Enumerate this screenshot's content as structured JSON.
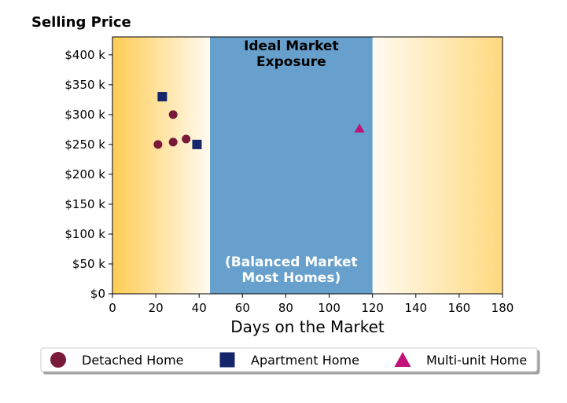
{
  "chart_data": {
    "type": "scatter",
    "title": "Selling Price",
    "xlabel": "Days on the Market",
    "xlim": [
      0,
      180
    ],
    "ylim": [
      0,
      430000
    ],
    "x_ticks": [
      0,
      20,
      40,
      60,
      80,
      100,
      120,
      140,
      160,
      180
    ],
    "x_tick_labels": [
      "0",
      "20",
      "40",
      "60",
      "80",
      "100",
      "120",
      "140",
      "160",
      "180"
    ],
    "y_ticks": [
      0,
      50000,
      100000,
      150000,
      200000,
      250000,
      300000,
      350000,
      400000
    ],
    "y_tick_labels": [
      "$0",
      "$50 k",
      "$100 k",
      "$150 k",
      "$200 k",
      "$250 k",
      "$300 k",
      "$350 k",
      "$400 k"
    ],
    "grid": false,
    "ideal_band": {
      "x_range": [
        45,
        120
      ],
      "color": "#67a0cd",
      "title_lines": [
        "Ideal Market",
        "Exposure"
      ],
      "subtitle_lines": [
        "(Balanced Market",
        "Most Homes)"
      ]
    },
    "background_gradient_color": "#ffcc55",
    "series": [
      {
        "name": "Detached Home",
        "marker": "circle",
        "color": "#7a1a3a",
        "points": [
          [
            21,
            250000
          ],
          [
            28,
            300000
          ],
          [
            28,
            254000
          ],
          [
            34,
            259000
          ]
        ]
      },
      {
        "name": "Apartment Home",
        "marker": "square",
        "color": "#15256b",
        "points": [
          [
            23,
            330000
          ],
          [
            39,
            250000
          ]
        ]
      },
      {
        "name": "Multi-unit Home",
        "marker": "triangle",
        "color": "#c0127a",
        "points": [
          [
            114,
            277000
          ]
        ]
      }
    ],
    "legend": {
      "placement": "bottom",
      "columns": 3
    }
  }
}
